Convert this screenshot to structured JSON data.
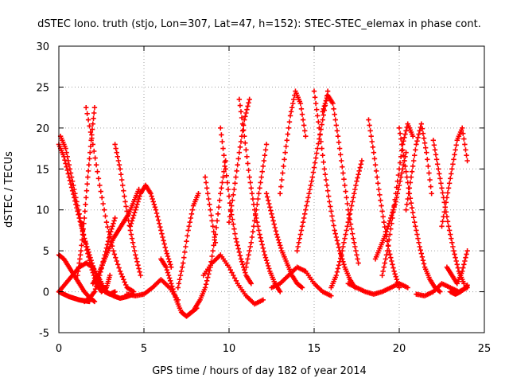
{
  "chart_data": {
    "type": "scatter",
    "title": "dSTEC Iono. truth (stjo, Lon=307, Lat=47, h=152): STEC-STEC_elemax in phase cont.",
    "xlabel": "GPS time / hours of day 182 of year 2014",
    "ylabel": "dSTEC  / TECUs",
    "xlim": [
      0,
      25
    ],
    "ylim": [
      -5,
      30
    ],
    "x_ticks": [
      0,
      5,
      10,
      15,
      20,
      25
    ],
    "x_tick_labels": [
      "0",
      "5",
      "10",
      "15",
      "20",
      "25"
    ],
    "y_ticks": [
      -5,
      0,
      5,
      10,
      15,
      20,
      25,
      30
    ],
    "y_tick_labels": [
      "-5",
      "0",
      "5",
      "10",
      "15",
      "20",
      "25",
      "30"
    ],
    "grid": true,
    "legend": "none",
    "marker": "+",
    "series": [
      {
        "color": "#ff0000",
        "x": [
          0.0,
          0.3,
          0.6,
          0.9,
          1.2,
          1.5,
          1.8,
          2.1,
          2.4,
          2.7,
          3.0,
          3.3
        ],
        "y": [
          18.0,
          16.5,
          14.0,
          11.5,
          9.0,
          6.5,
          4.5,
          2.5,
          1.0,
          0.0,
          -0.3,
          0.0
        ]
      },
      {
        "color": "#ff0000",
        "x": [
          0.1,
          0.4,
          0.7,
          1.0,
          1.3,
          1.6,
          1.9,
          2.2,
          2.5,
          2.8,
          3.0
        ],
        "y": [
          19.0,
          17.5,
          14.5,
          11.5,
          8.5,
          5.5,
          3.0,
          1.0,
          0.0,
          0.5,
          2.0
        ]
      },
      {
        "color": "#ff0000",
        "x": [
          0.0,
          0.3,
          0.6,
          0.9,
          1.2,
          1.5,
          1.8,
          2.1
        ],
        "y": [
          4.5,
          4.0,
          3.0,
          2.0,
          1.0,
          0.0,
          -0.7,
          -1.2
        ]
      },
      {
        "color": "#ff0000",
        "x": [
          0.0,
          0.4,
          0.8,
          1.2,
          1.6,
          2.0,
          2.4,
          2.8,
          3.2,
          3.6,
          4.0,
          4.4
        ],
        "y": [
          0.0,
          1.0,
          2.0,
          3.0,
          3.5,
          3.0,
          1.5,
          0.0,
          -0.5,
          -0.8,
          -0.6,
          -0.3
        ]
      },
      {
        "color": "#ff0000",
        "x": [
          0.0,
          0.3,
          0.6,
          0.9,
          1.2,
          1.5,
          1.8
        ],
        "y": [
          0.0,
          -0.3,
          -0.6,
          -0.8,
          -1.0,
          -1.1,
          -1.2
        ]
      },
      {
        "color": "#ff0000",
        "x": [
          1.1,
          1.3,
          1.5,
          1.7,
          1.9,
          2.1
        ],
        "y": [
          2.0,
          5.0,
          9.0,
          14.0,
          18.5,
          22.5
        ]
      },
      {
        "color": "#ff0000",
        "x": [
          1.6,
          2.0,
          2.4,
          2.8,
          3.2,
          3.6,
          4.0,
          4.4
        ],
        "y": [
          22.5,
          18.0,
          13.0,
          8.5,
          5.0,
          2.5,
          0.5,
          0.0
        ]
      },
      {
        "color": "#ff0000",
        "x": [
          1.5,
          1.8,
          2.1,
          2.4,
          2.7,
          3.0,
          3.3
        ],
        "y": [
          -1.2,
          -0.8,
          0.0,
          2.0,
          4.5,
          7.0,
          9.0
        ]
      },
      {
        "color": "#ff0000",
        "x": [
          2.0,
          2.3,
          2.6,
          2.9,
          3.2,
          3.5,
          3.8,
          4.1,
          4.4,
          4.7
        ],
        "y": [
          1.0,
          2.0,
          3.5,
          5.0,
          6.5,
          7.5,
          8.5,
          9.5,
          11.0,
          12.5
        ]
      },
      {
        "color": "#ff0000",
        "x": [
          3.3,
          3.6,
          3.9,
          4.2,
          4.5,
          4.8
        ],
        "y": [
          18.0,
          15.0,
          11.0,
          7.5,
          4.5,
          2.0
        ]
      },
      {
        "color": "#ff0000",
        "x": [
          4.2,
          4.5,
          4.8,
          5.1,
          5.4,
          5.7,
          6.0,
          6.3,
          6.6
        ],
        "y": [
          8.0,
          10.0,
          12.0,
          13.0,
          12.0,
          10.0,
          7.5,
          5.0,
          3.0
        ]
      },
      {
        "color": "#ff0000",
        "x": [
          4.0,
          4.5,
          5.0,
          5.5,
          6.0,
          6.5,
          7.0
        ],
        "y": [
          -0.3,
          -0.5,
          -0.3,
          0.5,
          1.5,
          0.5,
          -1.0
        ]
      },
      {
        "color": "#ff0000",
        "x": [
          6.0,
          6.3,
          6.6,
          6.9,
          7.2,
          7.5,
          7.8,
          8.1
        ],
        "y": [
          4.0,
          3.0,
          1.0,
          -1.0,
          -2.5,
          -3.0,
          -2.5,
          -2.0
        ]
      },
      {
        "color": "#ff0000",
        "x": [
          7.0,
          7.3,
          7.6,
          7.9,
          8.2
        ],
        "y": [
          0.5,
          3.5,
          7.5,
          10.5,
          12.0
        ]
      },
      {
        "color": "#ff0000",
        "x": [
          8.0,
          8.3,
          8.6,
          8.9,
          9.2,
          9.5,
          9.8
        ],
        "y": [
          -2.0,
          -1.0,
          0.5,
          3.0,
          7.0,
          12.0,
          16.0
        ]
      },
      {
        "color": "#ff0000",
        "x": [
          8.6,
          8.9,
          9.2
        ],
        "y": [
          14.0,
          10.0,
          6.0
        ]
      },
      {
        "color": "#ff0000",
        "x": [
          9.5,
          9.8,
          10.1,
          10.4,
          10.7,
          11.0,
          11.3
        ],
        "y": [
          20.0,
          15.0,
          10.0,
          6.5,
          4.0,
          2.0,
          1.0
        ]
      },
      {
        "color": "#ff0000",
        "x": [
          8.5,
          9.0,
          9.5,
          10.0,
          10.5,
          11.0,
          11.5,
          12.0
        ],
        "y": [
          2.0,
          3.5,
          4.5,
          3.0,
          1.0,
          -0.5,
          -1.5,
          -1.0
        ]
      },
      {
        "color": "#ff0000",
        "x": [
          10.0,
          10.3,
          10.6,
          10.9,
          11.2
        ],
        "y": [
          8.5,
          12.5,
          17.0,
          21.0,
          23.5
        ]
      },
      {
        "color": "#ff0000",
        "x": [
          10.6,
          10.9,
          11.2,
          11.5,
          11.8,
          12.1,
          12.4,
          12.7,
          13.0
        ],
        "y": [
          23.5,
          19.0,
          14.0,
          10.0,
          7.0,
          4.5,
          2.5,
          1.0,
          0.0
        ]
      },
      {
        "color": "#ff0000",
        "x": [
          11.0,
          11.3,
          11.6,
          11.9,
          12.2
        ],
        "y": [
          3.0,
          6.0,
          10.0,
          14.0,
          18.0
        ]
      },
      {
        "color": "#ff0000",
        "x": [
          12.2,
          12.5,
          12.8,
          13.1,
          13.4,
          13.7,
          14.0,
          14.3
        ],
        "y": [
          12.0,
          9.5,
          7.0,
          5.0,
          3.5,
          2.0,
          1.0,
          0.5
        ]
      },
      {
        "color": "#ff0000",
        "x": [
          13.0,
          13.3,
          13.6,
          13.9,
          14.2,
          14.5
        ],
        "y": [
          12.0,
          17.0,
          21.5,
          24.5,
          23.0,
          19.0
        ]
      },
      {
        "color": "#ff0000",
        "x": [
          12.5,
          13.0,
          13.5,
          14.0,
          14.5,
          15.0,
          15.5,
          16.0
        ],
        "y": [
          0.5,
          1.0,
          2.0,
          3.0,
          2.5,
          1.0,
          0.0,
          -0.5
        ]
      },
      {
        "color": "#ff0000",
        "x": [
          14.0,
          14.3,
          14.6,
          14.9,
          15.2,
          15.5,
          15.8
        ],
        "y": [
          5.0,
          8.0,
          11.0,
          14.0,
          17.5,
          21.0,
          24.5
        ]
      },
      {
        "color": "#ff0000",
        "x": [
          15.0,
          15.3,
          15.6,
          15.9,
          16.2,
          16.5,
          16.8,
          17.1,
          17.4
        ],
        "y": [
          24.5,
          20.0,
          15.0,
          11.0,
          7.5,
          5.0,
          3.0,
          1.5,
          0.5
        ]
      },
      {
        "color": "#ff0000",
        "x": [
          15.5,
          15.8,
          16.1,
          16.4,
          16.7,
          17.0,
          17.3,
          17.6
        ],
        "y": [
          22.0,
          24.0,
          23.0,
          19.0,
          14.5,
          10.0,
          6.5,
          3.5
        ]
      },
      {
        "color": "#ff0000",
        "x": [
          16.0,
          16.3,
          16.6,
          16.9,
          17.2,
          17.5,
          17.8
        ],
        "y": [
          0.5,
          2.0,
          4.5,
          7.5,
          10.5,
          13.5,
          16.0
        ]
      },
      {
        "color": "#ff0000",
        "x": [
          17.0,
          17.5,
          18.0,
          18.5,
          19.0,
          19.5,
          20.0,
          20.5
        ],
        "y": [
          1.0,
          0.5,
          0.0,
          -0.3,
          0.0,
          0.5,
          1.0,
          0.5
        ]
      },
      {
        "color": "#ff0000",
        "x": [
          18.2,
          18.5,
          18.8,
          19.1,
          19.4,
          19.7,
          20.0
        ],
        "y": [
          21.0,
          17.0,
          12.5,
          8.5,
          5.0,
          2.5,
          0.5
        ]
      },
      {
        "color": "#ff0000",
        "x": [
          18.6,
          18.9,
          19.2,
          19.5,
          19.8,
          20.1,
          20.4
        ],
        "y": [
          4.0,
          5.5,
          7.0,
          9.0,
          11.0,
          14.0,
          17.0
        ]
      },
      {
        "color": "#ff0000",
        "x": [
          19.0,
          19.3,
          19.6,
          19.9,
          20.2,
          20.5,
          20.8
        ],
        "y": [
          2.0,
          5.0,
          9.0,
          13.5,
          18.0,
          20.5,
          19.0
        ]
      },
      {
        "color": "#ff0000",
        "x": [
          20.0,
          20.3,
          20.6,
          20.9,
          21.2,
          21.5,
          21.8,
          22.1,
          22.4
        ],
        "y": [
          20.0,
          16.0,
          12.0,
          8.5,
          5.5,
          3.0,
          1.5,
          0.5,
          0.0
        ]
      },
      {
        "color": "#ff0000",
        "x": [
          20.4,
          20.7,
          21.0,
          21.3,
          21.6,
          21.9
        ],
        "y": [
          10.0,
          14.0,
          18.0,
          20.5,
          17.0,
          12.0
        ]
      },
      {
        "color": "#ff0000",
        "x": [
          21.0,
          21.5,
          22.0,
          22.5,
          23.0,
          23.5,
          24.0
        ],
        "y": [
          -0.3,
          -0.5,
          0.0,
          1.0,
          0.5,
          0.0,
          0.5
        ]
      },
      {
        "color": "#ff0000",
        "x": [
          22.0,
          22.3,
          22.6,
          22.9,
          23.2,
          23.5,
          23.8
        ],
        "y": [
          18.5,
          15.0,
          11.5,
          8.0,
          5.0,
          2.5,
          1.0
        ]
      },
      {
        "color": "#ff0000",
        "x": [
          22.5,
          22.8,
          23.1,
          23.4,
          23.7,
          24.0
        ],
        "y": [
          8.0,
          11.5,
          15.0,
          18.5,
          20.0,
          16.0
        ]
      },
      {
        "color": "#ff0000",
        "x": [
          22.8,
          23.1,
          23.4,
          23.7,
          24.0
        ],
        "y": [
          3.0,
          2.0,
          1.0,
          2.5,
          5.0
        ]
      },
      {
        "color": "#ff0000",
        "x": [
          23.0,
          23.3,
          23.6,
          23.9,
          24.0
        ],
        "y": [
          0.0,
          -0.3,
          0.0,
          0.5,
          0.8
        ]
      }
    ]
  }
}
